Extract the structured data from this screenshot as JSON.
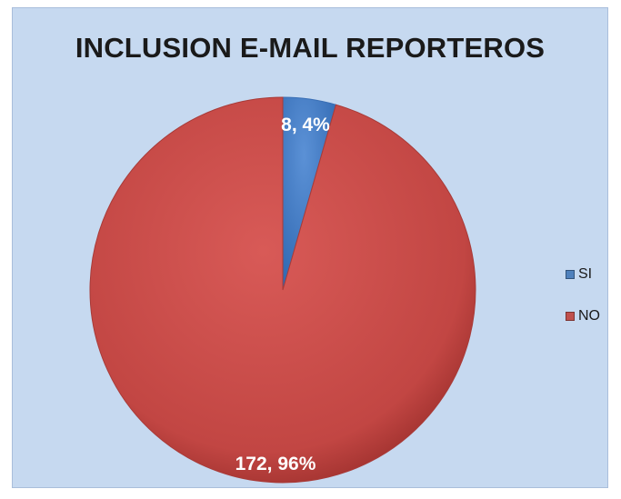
{
  "chart_data": {
    "type": "pie",
    "title": "INCLUSION E-MAIL REPORTEROS",
    "categories": [
      "SI",
      "NO"
    ],
    "values": [
      8,
      172
    ],
    "percentages": [
      4,
      96
    ],
    "data_labels": [
      "8, 4%",
      "172, 96%"
    ],
    "colors": [
      "#4f81bd",
      "#c0504d"
    ],
    "legend": "right",
    "legend_entries": [
      "SI",
      "NO"
    ]
  }
}
